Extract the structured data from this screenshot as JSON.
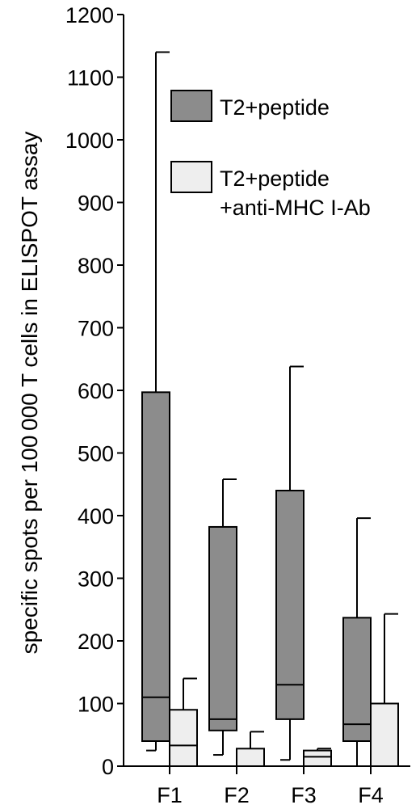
{
  "chart_data": {
    "type": "box",
    "title": "",
    "xlabel": "",
    "ylabel": "specific spots per 100 000 T cells in ELISPOT assay",
    "ylim": [
      0,
      1200
    ],
    "yticks": [
      0,
      100,
      200,
      300,
      400,
      500,
      600,
      700,
      800,
      900,
      1000,
      1100,
      1200
    ],
    "categories": [
      "F1",
      "F2",
      "F3",
      "F4"
    ],
    "grid": false,
    "legend_position": "top-right",
    "series": [
      {
        "name": "T2+peptide",
        "color": "#8c8c8c",
        "boxes": [
          {
            "whisker_low": 25,
            "q1": 40,
            "median": 110,
            "q3": 597,
            "whisker_high": 1140
          },
          {
            "whisker_low": 18,
            "q1": 57,
            "median": 75,
            "q3": 382,
            "whisker_high": 458
          },
          {
            "whisker_low": 10,
            "q1": 75,
            "median": 130,
            "q3": 440,
            "whisker_high": 638
          },
          {
            "whisker_low": 0,
            "q1": 40,
            "median": 67,
            "q3": 237,
            "whisker_high": 396
          }
        ]
      },
      {
        "name": "T2+peptide\n+anti-MHC I-Ab",
        "color": "#eeeeee",
        "boxes": [
          {
            "whisker_low": 0,
            "q1": 0,
            "median": 33,
            "q3": 90,
            "whisker_high": 140
          },
          {
            "whisker_low": 0,
            "q1": 0,
            "median": 0,
            "q3": 28,
            "whisker_high": 55
          },
          {
            "whisker_low": 0,
            "q1": 0,
            "median": 15,
            "q3": 25,
            "whisker_high": 28
          },
          {
            "whisker_low": 0,
            "q1": 0,
            "median": 0,
            "q3": 100,
            "whisker_high": 243
          }
        ]
      }
    ]
  }
}
